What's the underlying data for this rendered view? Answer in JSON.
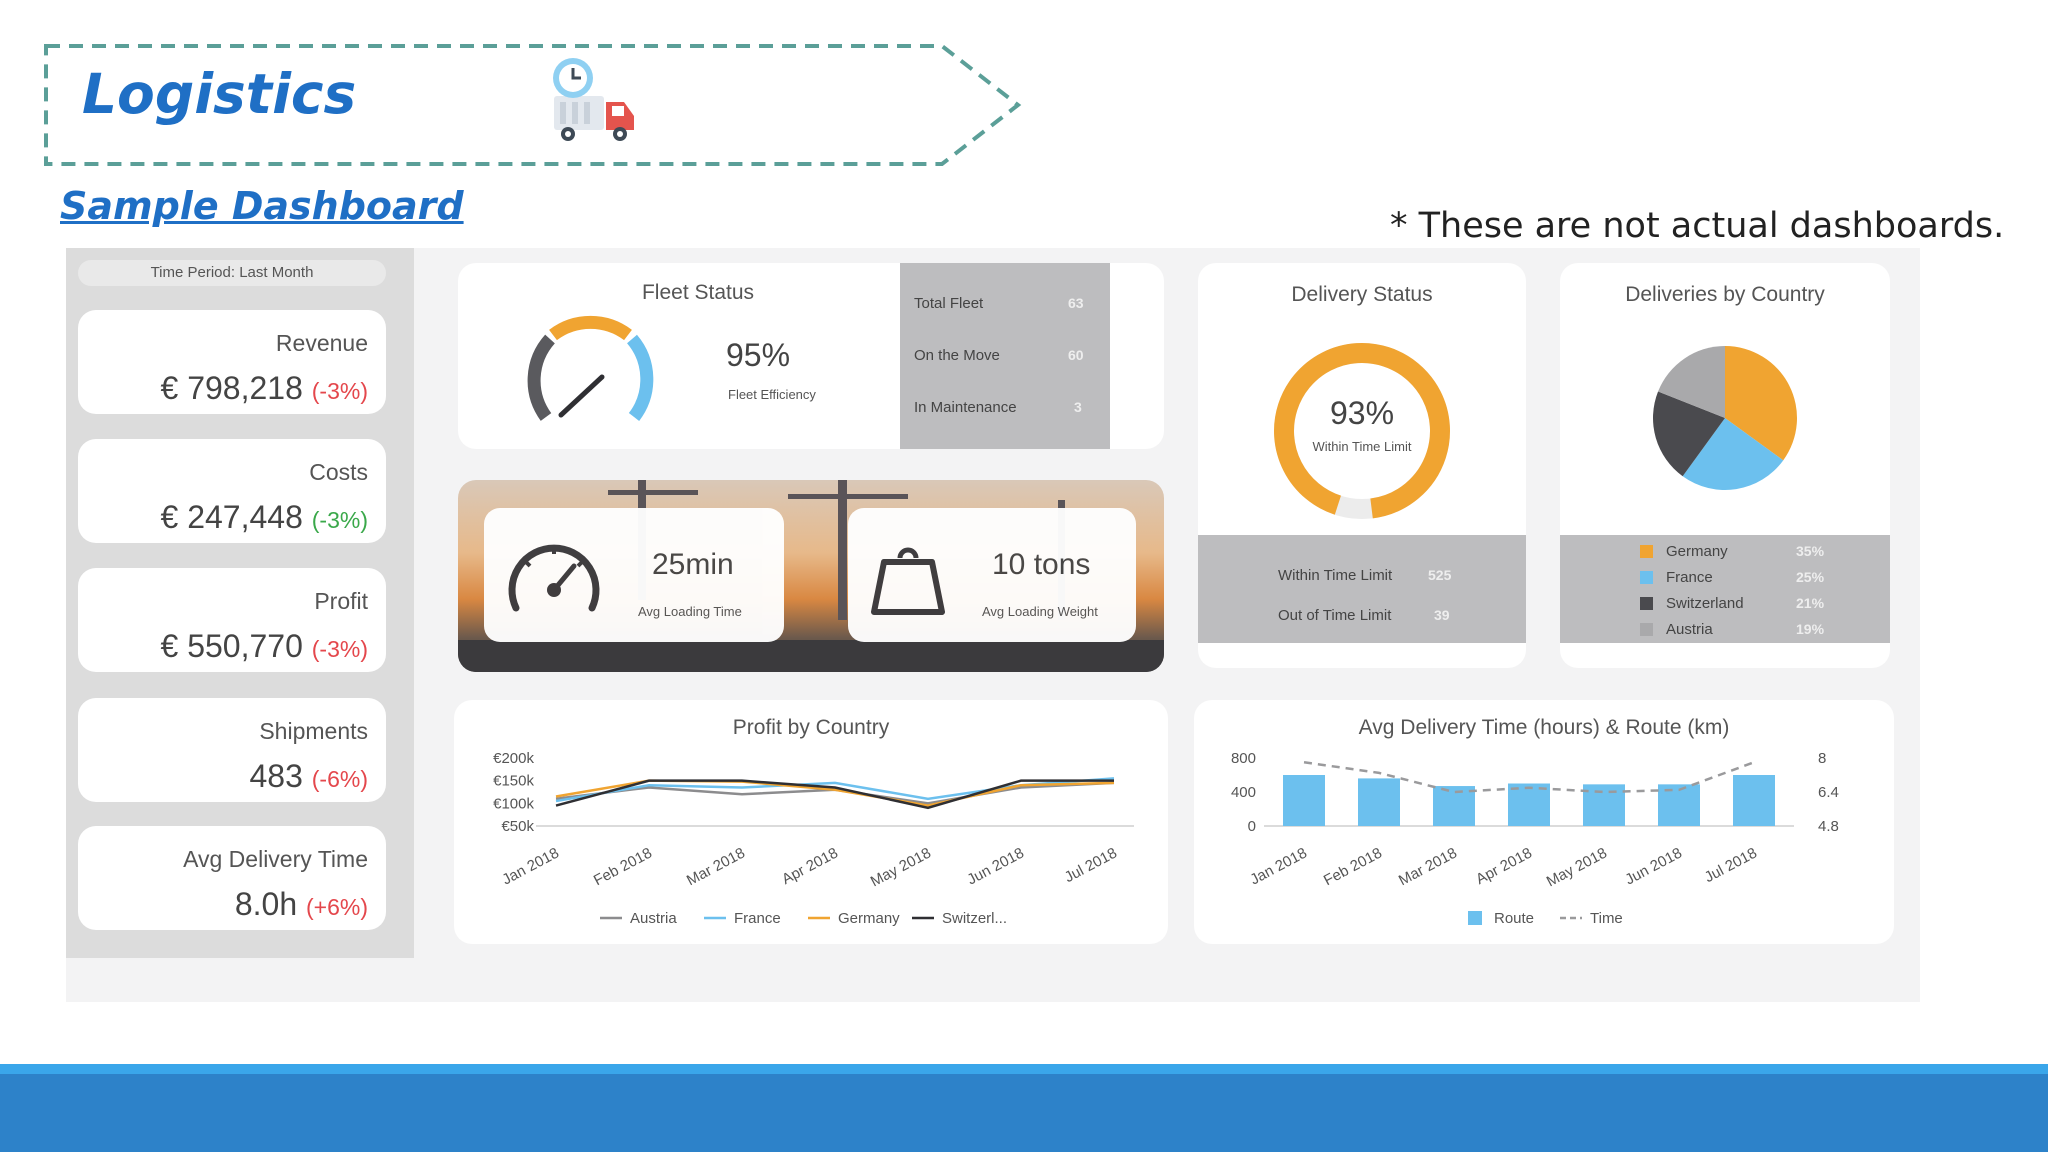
{
  "header": {
    "title": "Logistics",
    "subtitle": "Sample Dashboard",
    "disclaimer": "* These are not actual dashboards."
  },
  "sidebar": {
    "period": "Time Period: Last Month",
    "kpis": [
      {
        "label": "Revenue",
        "value": "€ 798,218",
        "change": "(-3%)",
        "trend": "negative"
      },
      {
        "label": "Costs",
        "value": "€ 247,448",
        "change": "(-3%)",
        "trend": "positive"
      },
      {
        "label": "Profit",
        "value": "€ 550,770",
        "change": "(-3%)",
        "trend": "negative"
      },
      {
        "label": "Shipments",
        "value": "483",
        "change": "(-6%)",
        "trend": "negative"
      },
      {
        "label": "Avg Delivery Time",
        "value": "8.0h",
        "change": "(+6%)",
        "trend": "negative"
      }
    ]
  },
  "fleet": {
    "title": "Fleet Status",
    "efficiency": "95%",
    "efficiency_label": "Fleet Efficiency",
    "rows": [
      {
        "label": "Total Fleet",
        "value": "63"
      },
      {
        "label": "On the Move",
        "value": "60"
      },
      {
        "label": "In Maintenance",
        "value": "3"
      }
    ]
  },
  "loading": {
    "time_value": "25min",
    "time_label": "Avg Loading Time",
    "weight_value": "10 tons",
    "weight_label": "Avg Loading Weight"
  },
  "delivery_status": {
    "title": "Delivery Status",
    "percent": "93%",
    "percent_label": "Within Time Limit",
    "fill": 0.93,
    "rows": [
      {
        "label": "Within Time Limit",
        "value": "525"
      },
      {
        "label": "Out of Time Limit",
        "value": "39"
      }
    ]
  },
  "deliveries_by_country": {
    "title": "Deliveries by Country",
    "chart_data": {
      "type": "pie",
      "slices": [
        {
          "label": "Germany",
          "value": 35,
          "display": "35%",
          "color": "#f0a431"
        },
        {
          "label": "France",
          "value": 25,
          "display": "25%",
          "color": "#6cc0ee"
        },
        {
          "label": "Switzerland",
          "value": 21,
          "display": "21%",
          "color": "#4a4a4e"
        },
        {
          "label": "Austria",
          "value": 19,
          "display": "19%",
          "color": "#a9a9ab"
        }
      ]
    }
  },
  "profit_by_country": {
    "title": "Profit by Country",
    "chart_data": {
      "type": "line",
      "categories": [
        "Jan 2018",
        "Feb 2018",
        "Mar 2018",
        "Apr 2018",
        "May 2018",
        "Jun 2018",
        "Jul 2018"
      ],
      "ylim": [
        50000,
        200000
      ],
      "yticks": [
        {
          "value": 200000,
          "label": "€200k"
        },
        {
          "value": 150000,
          "label": "€150k"
        },
        {
          "value": 100000,
          "label": "€100k"
        },
        {
          "value": 50000,
          "label": "€50k"
        }
      ],
      "series": [
        {
          "name": "Austria",
          "color": "#8c8c8e",
          "values": [
            110000,
            135000,
            120000,
            130000,
            100000,
            135000,
            145000
          ]
        },
        {
          "name": "France",
          "color": "#6cc0ee",
          "values": [
            105000,
            140000,
            135000,
            145000,
            110000,
            140000,
            155000
          ]
        },
        {
          "name": "Germany",
          "color": "#f0a431",
          "values": [
            115000,
            150000,
            148000,
            130000,
            95000,
            140000,
            145000
          ]
        },
        {
          "name": "Switzerl...",
          "color": "#2f2f33",
          "values": [
            95000,
            150000,
            150000,
            135000,
            90000,
            150000,
            150000
          ]
        }
      ]
    }
  },
  "avg_delivery_route": {
    "title": "Avg Delivery Time (hours) & Route (km)",
    "chart_data": {
      "type": "bar",
      "categories": [
        "Jan 2018",
        "Feb 2018",
        "Mar 2018",
        "Apr 2018",
        "May 2018",
        "Jun 2018",
        "Jul 2018"
      ],
      "left_ylim": [
        0,
        800
      ],
      "left_yticks": [
        "800",
        "400",
        "0"
      ],
      "right_ylim": [
        4.8,
        8
      ],
      "right_yticks": [
        "8",
        "6.4",
        "4.8"
      ],
      "series": [
        {
          "name": "Route",
          "color": "#6cc0ee",
          "axis": "left",
          "values": [
            600,
            560,
            470,
            500,
            490,
            490,
            600
          ]
        },
        {
          "name": "Time",
          "color": "#9a9a9c",
          "axis": "right",
          "values": [
            7.8,
            7.3,
            6.4,
            6.6,
            6.4,
            6.5,
            7.8
          ]
        }
      ]
    }
  }
}
